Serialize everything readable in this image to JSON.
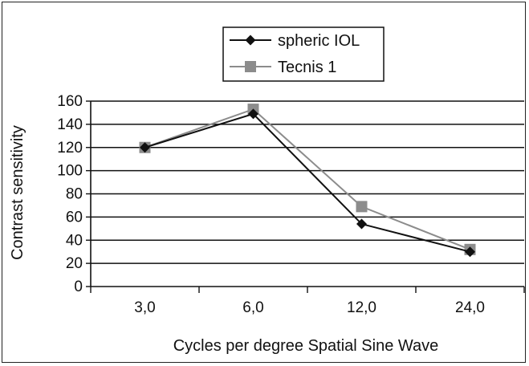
{
  "chart_data": {
    "type": "line",
    "title": "",
    "xlabel": "Cycles per degree Spatial Sine Wave",
    "ylabel": "Contrast sensitivity",
    "categories": [
      "3,0",
      "6,0",
      "12,0",
      "24,0"
    ],
    "ylim": [
      0,
      160
    ],
    "yticks": [
      0,
      20,
      40,
      60,
      80,
      100,
      120,
      140,
      160
    ],
    "grid": "horizontal",
    "legend": "top-center",
    "series": [
      {
        "name": "spheric IOL",
        "values": [
          120,
          149,
          54,
          30
        ],
        "color": "#111111",
        "marker": "diamond"
      },
      {
        "name": "Tecnis 1",
        "values": [
          120,
          153,
          69,
          32
        ],
        "color": "#8c8c8c",
        "marker": "square"
      }
    ]
  }
}
